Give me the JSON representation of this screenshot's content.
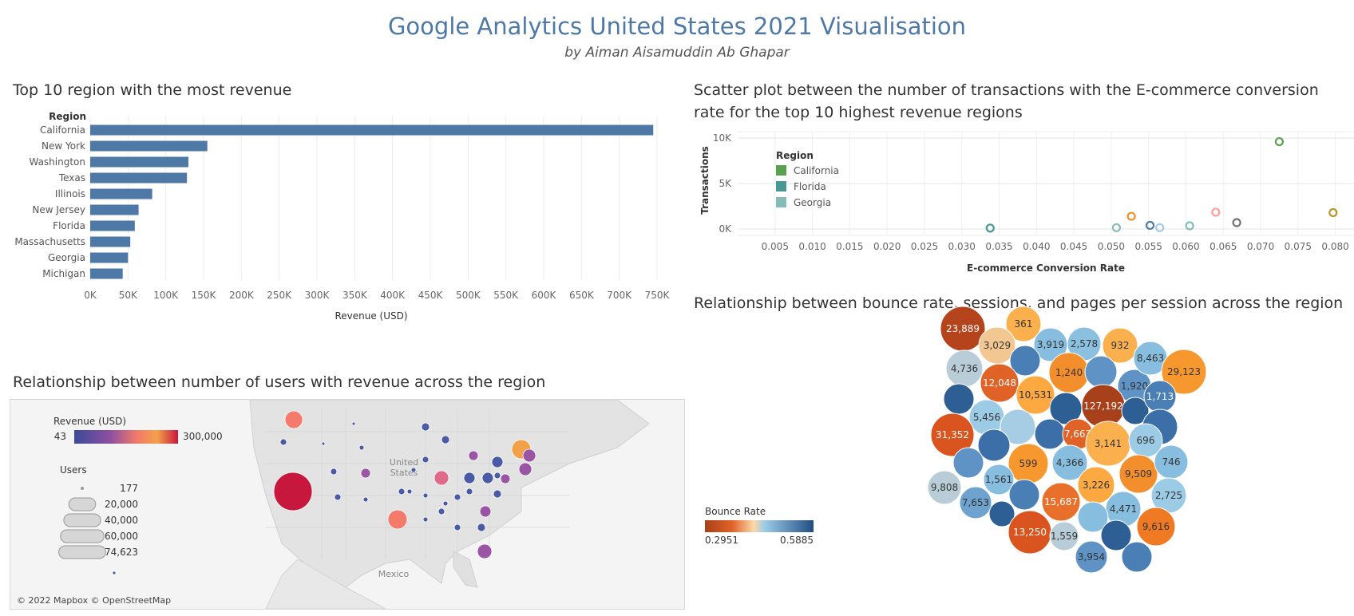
{
  "header": {
    "title": "Google Analytics United States 2021 Visualisation",
    "subtitle": "by Aiman Aisamuddin Ab Ghapar"
  },
  "colors": {
    "bar": "#4e79a7",
    "title": "#4e79a7"
  },
  "chart_data": [
    {
      "type": "bar",
      "title": "Top 10 region with the most revenue",
      "category_label": "Region",
      "xlabel": "Revenue (USD)",
      "categories": [
        "California",
        "New York",
        "Washington",
        "Texas",
        "Illinois",
        "New Jersey",
        "Florida",
        "Massachusetts",
        "Georgia",
        "Michigan"
      ],
      "values": [
        745000,
        155000,
        130000,
        128000,
        82000,
        64000,
        59000,
        53000,
        50000,
        43000
      ],
      "xlim": [
        0,
        750000
      ],
      "xticks": [
        0,
        50000,
        100000,
        150000,
        200000,
        250000,
        300000,
        350000,
        400000,
        450000,
        500000,
        550000,
        600000,
        650000,
        700000,
        750000
      ],
      "xtick_labels": [
        "0K",
        "50K",
        "100K",
        "150K",
        "200K",
        "250K",
        "300K",
        "350K",
        "400K",
        "450K",
        "500K",
        "550K",
        "600K",
        "650K",
        "700K",
        "750K"
      ],
      "grid": true
    },
    {
      "type": "scatter",
      "title": "Scatter plot between the number of transactions with the E-commerce conversion rate for the top 10 highest revenue regions",
      "xlabel": "E-commerce Conversion Rate",
      "ylabel": "Transactions",
      "xlim": [
        0,
        0.0825
      ],
      "ylim": [
        -700,
        10700
      ],
      "xticks": [
        0.005,
        0.01,
        0.015,
        0.02,
        0.025,
        0.03,
        0.035,
        0.04,
        0.045,
        0.05,
        0.055,
        0.06,
        0.065,
        0.07,
        0.075,
        0.08
      ],
      "xtick_labels": [
        "0.005",
        "0.010",
        "0.015",
        "0.020",
        "0.025",
        "0.030",
        "0.035",
        "0.040",
        "0.045",
        "0.050",
        "0.055",
        "0.060",
        "0.065",
        "0.070",
        "0.075",
        "0.080"
      ],
      "yticks": [
        0,
        5000,
        10000
      ],
      "ytick_labels": [
        "0K",
        "5K",
        "10K"
      ],
      "legend_title": "Region",
      "legend_position": "top-left",
      "legend": [
        {
          "name": "California",
          "color": "#59a14f"
        },
        {
          "name": "Florida",
          "color": "#499894"
        },
        {
          "name": "Georgia",
          "color": "#86bcb6"
        }
      ],
      "points": [
        {
          "x": 0.0725,
          "y": 9600,
          "color": "#59a14f"
        },
        {
          "x": 0.0338,
          "y": 100,
          "color": "#499894"
        },
        {
          "x": 0.0507,
          "y": 150,
          "color": "#86bcb6"
        },
        {
          "x": 0.0527,
          "y": 1400,
          "color": "#f28e2b"
        },
        {
          "x": 0.0552,
          "y": 400,
          "color": "#4e79a7"
        },
        {
          "x": 0.0565,
          "y": 150,
          "color": "#a0cbe8"
        },
        {
          "x": 0.0605,
          "y": 350,
          "color": "#86bcb6"
        },
        {
          "x": 0.064,
          "y": 1850,
          "color": "#ff9d9a"
        },
        {
          "x": 0.0668,
          "y": 700,
          "color": "#79706e"
        },
        {
          "x": 0.0797,
          "y": 1800,
          "color": "#b6992d"
        }
      ],
      "grid": true
    },
    {
      "type": "map",
      "title": "Relationship between number of users with revenue across the region",
      "color_legend_title": "Revenue (USD)",
      "color_range": [
        43,
        300000
      ],
      "color_range_labels": [
        "43",
        "300,000"
      ],
      "size_legend_title": "Users",
      "size_legend": [
        "177",
        "20,000",
        "40,000",
        "60,000",
        "74,623"
      ],
      "map_labels": [
        "United",
        "States",
        "Mexico"
      ],
      "attribution": "© 2022 Mapbox © OpenStreetMap"
    },
    {
      "type": "bubble",
      "title": "Relationship between bounce rate, sessions, and pages per session across the region",
      "color_legend_title": "Bounce Rate",
      "color_range": [
        0.2951,
        0.5885
      ],
      "color_range_labels": [
        "0.2951",
        "0.5885"
      ],
      "bubbles": [
        {
          "label": "23,889",
          "color": "#b5431c"
        },
        {
          "label": "361",
          "color": "#fbb04e"
        },
        {
          "label": "3,029",
          "color": "#f3c792"
        },
        {
          "label": "3,919",
          "color": "#87bddf"
        },
        {
          "label": "2,578",
          "color": "#8cc0e1"
        },
        {
          "label": "932",
          "color": "#fbb04e"
        },
        {
          "label": "4,736",
          "color": "#b9cdd8"
        },
        {
          "label": "",
          "color": "#4a7fb5"
        },
        {
          "label": "12,048",
          "color": "#e06226"
        },
        {
          "label": "1,240",
          "color": "#f28e2b"
        },
        {
          "label": "",
          "color": "#5f93c6"
        },
        {
          "label": "1,920",
          "color": "#5f93c6"
        },
        {
          "label": "8,463",
          "color": "#87bddf"
        },
        {
          "label": "29,123",
          "color": "#f7982f"
        },
        {
          "label": "10,531",
          "color": "#fba940"
        },
        {
          "label": "",
          "color": "#2d5f95"
        },
        {
          "label": "127,192",
          "color": "#a8401b"
        },
        {
          "label": "",
          "color": "#2d5f95"
        },
        {
          "label": "1,713",
          "color": "#4a7fb5"
        },
        {
          "label": "",
          "color": "#2d5f95"
        },
        {
          "label": "5,456",
          "color": "#9ccbe6"
        },
        {
          "label": "",
          "color": "#a6cde3"
        },
        {
          "label": "31,352",
          "color": "#d9541e"
        },
        {
          "label": "",
          "color": "#3c6fa7"
        },
        {
          "label": "",
          "color": "#3c6fa7"
        },
        {
          "label": "7,663",
          "color": "#e06226"
        },
        {
          "label": "3,141",
          "color": "#fbb04e"
        },
        {
          "label": "",
          "color": "#3c6fa7"
        },
        {
          "label": "696",
          "color": "#9ccbe6"
        },
        {
          "label": "",
          "color": "#5f93c6"
        },
        {
          "label": "599",
          "color": "#f7982f"
        },
        {
          "label": "4,366",
          "color": "#87bddf"
        },
        {
          "label": "9,509",
          "color": "#f28e2b"
        },
        {
          "label": "746",
          "color": "#87bddf"
        },
        {
          "label": "1,561",
          "color": "#87bddf"
        },
        {
          "label": "3,226",
          "color": "#fba940"
        },
        {
          "label": "9,808",
          "color": "#b9cdd8"
        },
        {
          "label": "",
          "color": "#4a7fb5"
        },
        {
          "label": "15,687",
          "color": "#e8702a"
        },
        {
          "label": "4,471",
          "color": "#87bddf"
        },
        {
          "label": "2,725",
          "color": "#9ccbe6"
        },
        {
          "label": "7,653",
          "color": "#6ea3cf"
        },
        {
          "label": "",
          "color": "#2d5f95"
        },
        {
          "label": "",
          "color": "#87bddf"
        },
        {
          "label": "9,616",
          "color": "#f07a23"
        },
        {
          "label": "13,250",
          "color": "#d9541e"
        },
        {
          "label": "1,559",
          "color": "#b9cdd8"
        },
        {
          "label": "",
          "color": "#2d5f95"
        },
        {
          "label": "3,954",
          "color": "#5f93c6"
        },
        {
          "label": "",
          "color": "#4a7fb5"
        }
      ]
    }
  ]
}
